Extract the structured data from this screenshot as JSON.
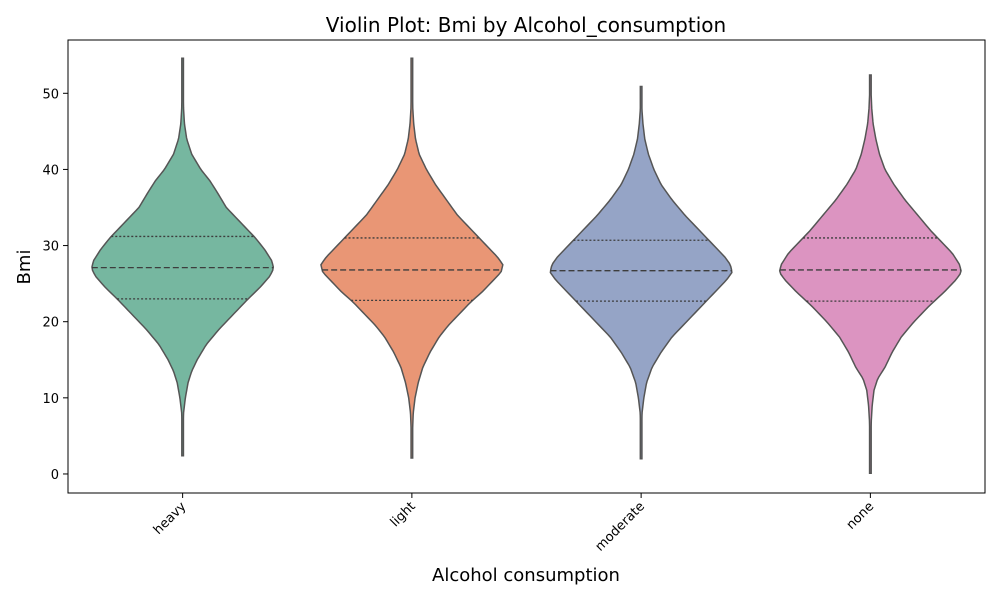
{
  "chart_data": {
    "type": "violin",
    "title": "Violin Plot: Bmi by Alcohol_consumption",
    "xlabel": "Alcohol consumption",
    "ylabel": "Bmi",
    "ylim": [
      -2.5,
      57
    ],
    "yticks": [
      0,
      10,
      20,
      30,
      40,
      50
    ],
    "grid": false,
    "categories": [
      "heavy",
      "light",
      "moderate",
      "none"
    ],
    "colors": [
      "#76b7a0",
      "#e99675",
      "#95a4c6",
      "#dc94c1"
    ],
    "series": [
      {
        "category": "heavy",
        "min": 2.4,
        "max": 54.6,
        "q1": 23.0,
        "median": 27.1,
        "q3": 31.2,
        "density": [
          [
            2.4,
            0.005
          ],
          [
            5,
            0.005
          ],
          [
            8,
            0.01
          ],
          [
            10,
            0.03
          ],
          [
            12,
            0.06
          ],
          [
            13.5,
            0.1
          ],
          [
            15,
            0.16
          ],
          [
            17,
            0.26
          ],
          [
            19,
            0.4
          ],
          [
            21,
            0.56
          ],
          [
            23,
            0.72
          ],
          [
            24.5,
            0.85
          ],
          [
            26,
            0.96
          ],
          [
            27,
            1.0
          ],
          [
            28,
            0.98
          ],
          [
            29.5,
            0.9
          ],
          [
            31,
            0.8
          ],
          [
            33,
            0.64
          ],
          [
            35,
            0.48
          ],
          [
            37,
            0.38
          ],
          [
            38.5,
            0.3
          ],
          [
            40,
            0.2
          ],
          [
            42,
            0.1
          ],
          [
            44,
            0.045
          ],
          [
            46,
            0.02
          ],
          [
            48,
            0.01
          ],
          [
            52,
            0.005
          ],
          [
            54.6,
            0.005
          ]
        ]
      },
      {
        "category": "light",
        "min": 2.1,
        "max": 54.6,
        "q1": 22.8,
        "median": 26.8,
        "q3": 31.0,
        "density": [
          [
            2.1,
            0.005
          ],
          [
            5,
            0.005
          ],
          [
            8,
            0.015
          ],
          [
            10,
            0.035
          ],
          [
            12,
            0.07
          ],
          [
            14,
            0.12
          ],
          [
            16,
            0.2
          ],
          [
            18,
            0.3
          ],
          [
            19.5,
            0.4
          ],
          [
            21,
            0.52
          ],
          [
            22.5,
            0.64
          ],
          [
            24,
            0.78
          ],
          [
            25.5,
            0.9
          ],
          [
            26.5,
            0.98
          ],
          [
            27.5,
            1.0
          ],
          [
            28.5,
            0.94
          ],
          [
            30,
            0.82
          ],
          [
            32,
            0.66
          ],
          [
            34,
            0.5
          ],
          [
            36,
            0.38
          ],
          [
            38,
            0.26
          ],
          [
            40,
            0.16
          ],
          [
            42,
            0.08
          ],
          [
            44,
            0.04
          ],
          [
            46,
            0.02
          ],
          [
            48,
            0.01
          ],
          [
            52,
            0.005
          ],
          [
            54.6,
            0.005
          ]
        ]
      },
      {
        "category": "moderate",
        "min": 2.0,
        "max": 50.9,
        "q1": 22.7,
        "median": 26.7,
        "q3": 30.7,
        "density": [
          [
            2.0,
            0.005
          ],
          [
            5,
            0.005
          ],
          [
            8,
            0.01
          ],
          [
            10,
            0.03
          ],
          [
            12,
            0.06
          ],
          [
            14,
            0.12
          ],
          [
            16,
            0.22
          ],
          [
            18,
            0.34
          ],
          [
            20,
            0.5
          ],
          [
            22,
            0.66
          ],
          [
            24,
            0.82
          ],
          [
            25.5,
            0.94
          ],
          [
            26.5,
            1.0
          ],
          [
            27.5,
            0.98
          ],
          [
            28.5,
            0.92
          ],
          [
            30,
            0.8
          ],
          [
            32,
            0.64
          ],
          [
            34,
            0.48
          ],
          [
            36,
            0.34
          ],
          [
            38,
            0.22
          ],
          [
            40,
            0.14
          ],
          [
            42,
            0.08
          ],
          [
            44,
            0.04
          ],
          [
            46,
            0.02
          ],
          [
            48,
            0.008
          ],
          [
            50.9,
            0.005
          ]
        ]
      },
      {
        "category": "none",
        "min": 0.1,
        "max": 52.4,
        "q1": 22.7,
        "median": 26.8,
        "q3": 31.0,
        "density": [
          [
            0.1,
            0.005
          ],
          [
            4,
            0.005
          ],
          [
            7,
            0.01
          ],
          [
            9,
            0.02
          ],
          [
            11,
            0.04
          ],
          [
            12.5,
            0.08
          ],
          [
            14,
            0.16
          ],
          [
            16,
            0.24
          ],
          [
            18,
            0.34
          ],
          [
            20,
            0.48
          ],
          [
            22,
            0.64
          ],
          [
            24,
            0.82
          ],
          [
            25.5,
            0.94
          ],
          [
            26.5,
            1.0
          ],
          [
            27.5,
            0.98
          ],
          [
            29,
            0.9
          ],
          [
            30.5,
            0.78
          ],
          [
            32,
            0.66
          ],
          [
            34,
            0.52
          ],
          [
            36,
            0.38
          ],
          [
            38,
            0.26
          ],
          [
            40,
            0.16
          ],
          [
            42,
            0.1
          ],
          [
            44,
            0.06
          ],
          [
            46,
            0.03
          ],
          [
            48,
            0.015
          ],
          [
            50,
            0.008
          ],
          [
            52.4,
            0.005
          ]
        ]
      }
    ]
  }
}
